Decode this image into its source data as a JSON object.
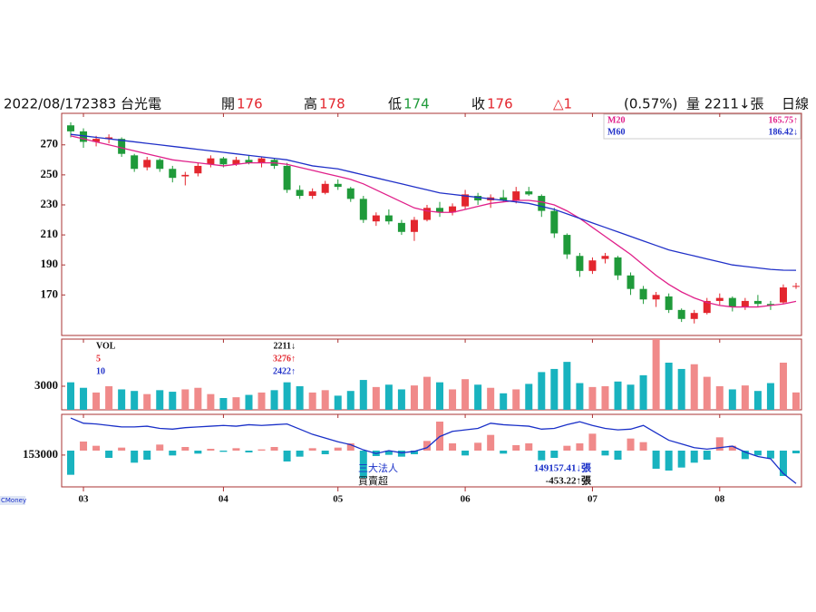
{
  "header": {
    "date": "2022/08/17",
    "stock": "2383 台光電",
    "open_label": "開",
    "open": 176,
    "high_label": "高",
    "high": 178,
    "low_label": "低",
    "low": 174,
    "close_label": "收",
    "close": 176,
    "change": "△1",
    "change_pct": "(0.57%)",
    "volume": "量 2211↓張",
    "period": "日線"
  },
  "chart_data": {
    "type": "candlestick",
    "xticks": [
      {
        "value": 1,
        "label": "03"
      },
      {
        "value": 12,
        "label": "04"
      },
      {
        "value": 21,
        "label": "05"
      },
      {
        "value": 31,
        "label": "06"
      },
      {
        "value": 41,
        "label": "07"
      },
      {
        "value": 51,
        "label": "08"
      }
    ],
    "ylim": [
      143,
      291
    ],
    "yticks": [
      170,
      190,
      210,
      230,
      250,
      270
    ],
    "up_color": "#e3262e",
    "down_color": "#1f9a3a",
    "candles": [
      [
        283,
        285,
        275,
        279
      ],
      [
        279,
        281,
        268,
        272
      ],
      [
        272,
        276,
        269,
        274
      ],
      [
        274,
        277,
        271,
        275
      ],
      [
        274,
        275,
        262,
        264
      ],
      [
        263,
        264,
        252,
        254
      ],
      [
        255,
        262,
        253,
        260
      ],
      [
        260,
        261,
        252,
        254
      ],
      [
        254,
        256,
        245,
        248
      ],
      [
        249,
        252,
        243,
        250
      ],
      [
        251,
        258,
        249,
        256
      ],
      [
        257,
        263,
        255,
        261
      ],
      [
        261,
        262,
        255,
        257
      ],
      [
        257,
        262,
        256,
        260
      ],
      [
        260,
        263,
        257,
        258
      ],
      [
        258,
        262,
        255,
        261
      ],
      [
        260,
        261,
        254,
        256
      ],
      [
        256,
        258,
        238,
        240
      ],
      [
        240,
        243,
        234,
        236
      ],
      [
        236,
        241,
        234,
        239
      ],
      [
        238,
        246,
        237,
        244
      ],
      [
        244,
        247,
        240,
        242
      ],
      [
        241,
        242,
        232,
        234
      ],
      [
        234,
        236,
        218,
        220
      ],
      [
        219,
        225,
        216,
        223
      ],
      [
        223,
        227,
        217,
        219
      ],
      [
        218,
        220,
        210,
        212
      ],
      [
        212,
        222,
        206,
        220
      ],
      [
        220,
        230,
        219,
        228
      ],
      [
        228,
        232,
        222,
        225
      ],
      [
        225,
        231,
        223,
        229
      ],
      [
        229,
        240,
        227,
        237
      ],
      [
        236,
        238,
        230,
        233
      ],
      [
        233,
        237,
        228,
        235
      ],
      [
        235,
        240,
        232,
        233
      ],
      [
        233,
        242,
        231,
        239
      ],
      [
        239,
        242,
        236,
        237
      ],
      [
        236,
        237,
        222,
        226
      ],
      [
        226,
        228,
        208,
        211
      ],
      [
        210,
        211,
        194,
        197
      ],
      [
        196,
        198,
        182,
        186
      ],
      [
        186,
        195,
        184,
        193
      ],
      [
        194,
        198,
        191,
        196
      ],
      [
        195,
        196,
        180,
        183
      ],
      [
        183,
        185,
        170,
        174
      ],
      [
        174,
        176,
        164,
        167
      ],
      [
        167,
        172,
        162,
        170
      ],
      [
        169,
        171,
        158,
        160
      ],
      [
        160,
        161,
        152,
        154
      ],
      [
        154,
        160,
        151,
        158
      ],
      [
        158,
        168,
        157,
        166
      ],
      [
        166,
        171,
        163,
        168
      ],
      [
        168,
        169,
        159,
        162
      ],
      [
        162,
        168,
        160,
        166
      ],
      [
        166,
        170,
        162,
        164
      ],
      [
        164,
        166,
        160,
        163
      ],
      [
        165,
        177,
        164,
        175
      ],
      [
        176,
        178,
        174,
        176
      ]
    ],
    "ma": [
      {
        "name": "M20",
        "value_label": "165.75↑",
        "color": "#e0208a",
        "values": [
          276,
          274,
          272,
          270,
          268,
          266,
          264,
          262,
          260,
          259,
          258,
          257,
          256,
          257,
          258,
          258,
          258,
          257,
          255,
          253,
          251,
          249,
          247,
          244,
          240,
          236,
          232,
          228,
          226,
          225,
          225,
          227,
          229,
          231,
          232,
          233,
          233,
          232,
          230,
          226,
          221,
          215,
          209,
          203,
          197,
          190,
          183,
          177,
          172,
          168,
          165,
          163,
          162,
          162,
          162,
          163,
          164,
          165.75
        ]
      },
      {
        "name": "M60",
        "value_label": "186.42↓",
        "color": "#2030c8",
        "values": [
          277,
          276,
          275,
          274,
          273,
          272,
          271,
          270,
          269,
          268,
          267,
          266,
          265,
          264,
          263,
          262,
          261,
          260,
          258,
          256,
          255,
          254,
          252,
          250,
          248,
          246,
          244,
          242,
          240,
          238,
          237,
          236,
          235,
          234,
          233,
          232,
          231,
          229,
          227,
          224,
          221,
          218,
          215,
          212,
          209,
          206,
          203,
          200,
          198,
          196,
          194,
          192,
          190,
          189,
          188,
          187,
          186.5,
          186.42
        ]
      }
    ],
    "volume": {
      "name": "VOL",
      "value_label": "2211↓",
      "ylim": [
        0,
        9000
      ],
      "yticks": [
        3000
      ],
      "up_color": "#f08a8a",
      "down_color": "#19b3bf",
      "values": [
        3500,
        2800,
        2200,
        3000,
        2600,
        2400,
        2000,
        2500,
        2300,
        2600,
        2800,
        2000,
        1500,
        1600,
        1900,
        2200,
        2500,
        3500,
        3000,
        2200,
        2500,
        1800,
        2400,
        3800,
        2900,
        3200,
        2600,
        3100,
        4200,
        3500,
        2600,
        3900,
        3200,
        2800,
        2100,
        2600,
        3300,
        4800,
        5200,
        6100,
        3400,
        2900,
        3000,
        3600,
        3200,
        4400,
        9000,
        6000,
        5200,
        5800,
        4200,
        3000,
        2600,
        3100,
        2400,
        3400,
        6000,
        2211
      ],
      "ma_labels": [
        {
          "name": "5",
          "value_label": "3276↑",
          "color": "#e3262e"
        },
        {
          "name": "10",
          "value_label": "2422↑",
          "color": "#2030c8"
        }
      ]
    },
    "institutional": {
      "name": "三大法人",
      "value_label": "149157.41↓張",
      "color": "#1a30c8",
      "ylim": [
        148700,
        158500
      ],
      "yticks": [
        153000
      ],
      "values": [
        158000,
        157300,
        157200,
        157000,
        156800,
        156800,
        156900,
        156600,
        156500,
        156700,
        156800,
        156900,
        157000,
        156900,
        157100,
        157000,
        157100,
        157200,
        156500,
        155800,
        155300,
        154800,
        154400,
        153700,
        153200,
        153600,
        153300,
        153500,
        154000,
        155500,
        156200,
        156400,
        156600,
        157300,
        157100,
        157000,
        156900,
        156500,
        156600,
        157100,
        157500,
        157000,
        156600,
        156400,
        156500,
        157000,
        156000,
        155000,
        154500,
        154000,
        153800,
        154000,
        154200,
        153400,
        152800,
        152500,
        150500,
        149157.41
      ],
      "net_name": "買賣超",
      "net_value_label": "-453.22↑張",
      "net_ylim": [
        -6000,
        6000
      ],
      "up_color": "#f08a8a",
      "down_color": "#19b3bf",
      "net_values": [
        -4000,
        1500,
        800,
        -1200,
        500,
        -2000,
        -1500,
        1000,
        -800,
        600,
        -500,
        300,
        -200,
        400,
        -300,
        200,
        600,
        -1800,
        -1000,
        400,
        -600,
        500,
        1200,
        -4500,
        -900,
        -700,
        -1000,
        -600,
        1600,
        4800,
        1200,
        -800,
        1300,
        2600,
        -500,
        900,
        1200,
        -1600,
        -1200,
        800,
        1200,
        2800,
        -800,
        -1500,
        2000,
        1400,
        -3000,
        -3300,
        -2800,
        -2000,
        -1500,
        2200,
        800,
        -1400,
        -800,
        -1300,
        -4200,
        -453.22
      ]
    }
  },
  "source": "CMoney"
}
